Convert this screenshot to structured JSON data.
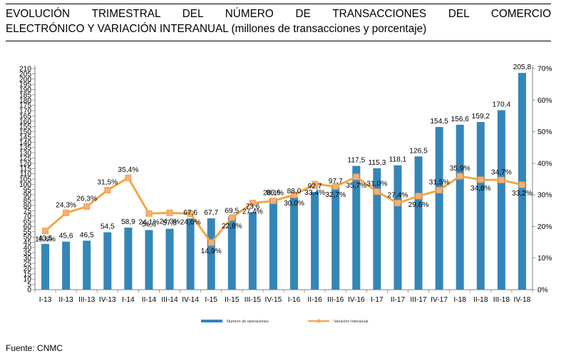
{
  "title": {
    "line1": "EVOLUCIÓN TRIMESTRAL DEL NÚMERO DE TRANSACCIONES DEL COMERCIO",
    "line2_bold": "ELECTRÓNICO Y VARIACIÓN INTERANUAL",
    "line2_rest": " (millones de transacciones y porcentaje)"
  },
  "source": "Fuente: CNMC",
  "colors": {
    "bars": "#3586b8",
    "line": "#f5a23a",
    "markers": "#f4ad7e"
  },
  "chart_data": {
    "type": "bar",
    "categories": [
      "I-13",
      "II-13",
      "III-13",
      "IV-13",
      "I-14",
      "II-14",
      "III-14",
      "IV-14",
      "I-15",
      "II-15",
      "III-15",
      "IV-15",
      "I-16",
      "II-16",
      "III-16",
      "IV-16",
      "I-17",
      "II-17",
      "III-17",
      "IV-17",
      "I-18",
      "II-18",
      "III-18",
      "IV-18"
    ],
    "series": [
      {
        "name": "Número de operaciones",
        "type": "bar",
        "axis": "left",
        "values": [
          43.5,
          45.6,
          46.5,
          54.5,
          58.9,
          56.6,
          57.8,
          67.6,
          67.7,
          69.5,
          73.6,
          86.6,
          88.0,
          92.7,
          97.7,
          117.5,
          115.3,
          118.1,
          126.5,
          154.5,
          156.6,
          159.2,
          170.4,
          205.8
        ],
        "labels": [
          "43,5",
          "45,6",
          "46,5",
          "54,5",
          "58,9",
          "56,6",
          "57,8",
          "67,6",
          "67,7",
          "69,5",
          "73,6",
          "86,6",
          "88,0",
          "92,7",
          "97,7",
          "117,5",
          "115,3",
          "118,1",
          "126,5",
          "154,5",
          "156,6",
          "159,2",
          "170,4",
          "205,8"
        ]
      },
      {
        "name": "Variación Interanual",
        "type": "line",
        "axis": "right",
        "values": [
          18.6,
          24.3,
          26.3,
          31.5,
          35.4,
          24.1,
          24.3,
          24.0,
          14.9,
          22.8,
          27.4,
          28.1,
          30.0,
          33.4,
          32.7,
          35.7,
          31.0,
          27.4,
          29.6,
          31.5,
          35.9,
          34.8,
          34.7,
          33.2
        ],
        "labels": [
          "18,6%",
          "24,3%",
          "26,3%",
          "31,5%",
          "35,4%",
          "24,1%",
          "24,3%",
          "24,0%",
          "14,9%",
          "22,8%",
          "27,4%",
          "28,1%",
          "30,0%",
          "33,4%",
          "32,7%",
          "35,7%",
          "31,0%",
          "27,4%",
          "29,6%",
          "31,5%",
          "35,9%",
          "34,8%",
          "34,7%",
          "33,2%"
        ]
      }
    ],
    "y_left": {
      "min": 0,
      "max": 210,
      "step": 5
    },
    "y_right": {
      "min": 0,
      "max": 70,
      "step": 10,
      "ticks": [
        "0%",
        "10%",
        "20%",
        "30%",
        "40%",
        "50%",
        "60%",
        "70%"
      ]
    },
    "legend": [
      "Número de operaciones",
      "Variación Interanual"
    ],
    "legend_position": "bottom",
    "grid": false
  }
}
